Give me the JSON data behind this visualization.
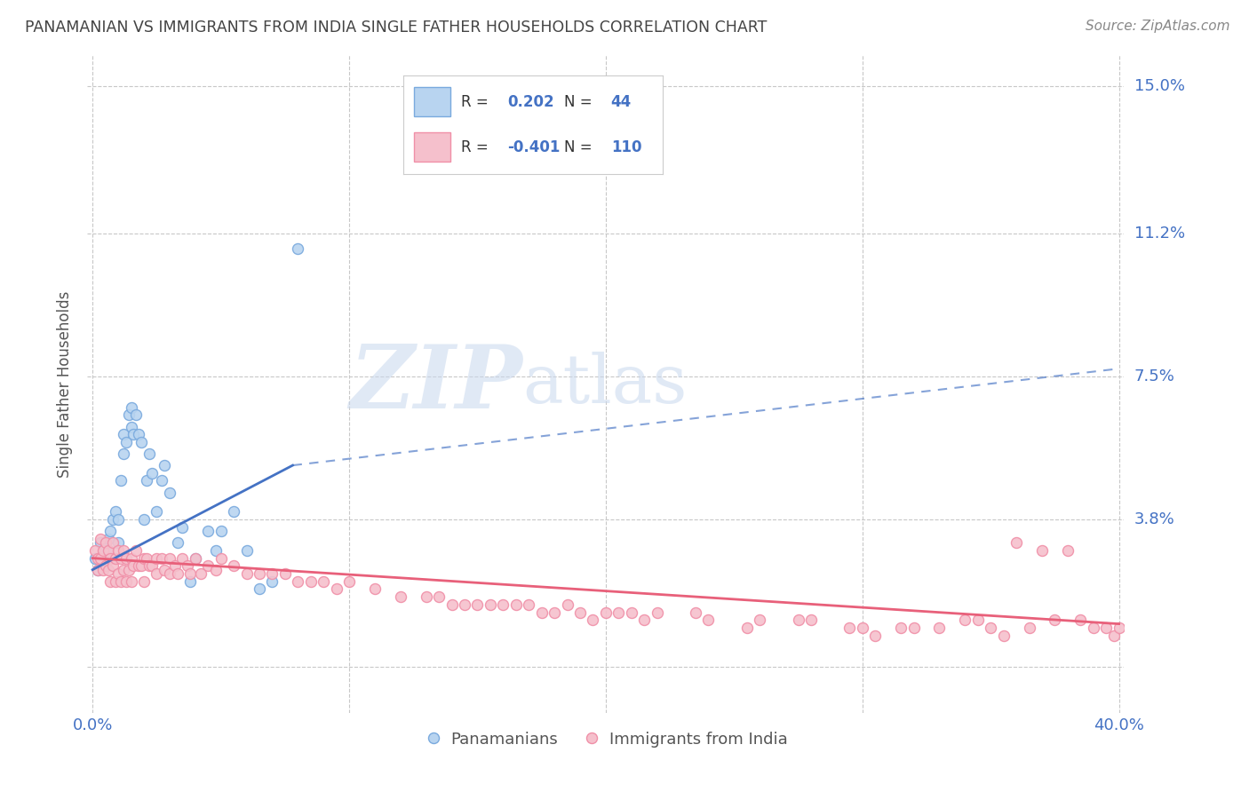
{
  "title": "PANAMANIAN VS IMMIGRANTS FROM INDIA SINGLE FATHER HOUSEHOLDS CORRELATION CHART",
  "source": "Source: ZipAtlas.com",
  "ylabel": "Single Father Households",
  "yticks": [
    0.0,
    0.038,
    0.075,
    0.112,
    0.15
  ],
  "ytick_labels": [
    "",
    "3.8%",
    "7.5%",
    "11.2%",
    "15.0%"
  ],
  "xticks": [
    0.0,
    0.1,
    0.2,
    0.3,
    0.4
  ],
  "xlim": [
    -0.002,
    0.402
  ],
  "ylim": [
    -0.012,
    0.158
  ],
  "blue_line_color": "#4472c4",
  "pink_line_color": "#e8607a",
  "blue_scatter_face": "#b8d4f0",
  "blue_scatter_edge": "#7aaade",
  "pink_scatter_face": "#f5c0cc",
  "pink_scatter_edge": "#f090a8",
  "axis_label_color": "#4472c4",
  "bg_color": "#ffffff",
  "grid_color": "#c8c8c8",
  "title_color": "#444444",
  "watermark_zip": "ZIP",
  "watermark_atlas": "atlas",
  "blue_points_x": [
    0.001,
    0.002,
    0.003,
    0.004,
    0.005,
    0.005,
    0.006,
    0.006,
    0.007,
    0.008,
    0.009,
    0.01,
    0.01,
    0.011,
    0.012,
    0.012,
    0.013,
    0.014,
    0.015,
    0.015,
    0.016,
    0.017,
    0.018,
    0.019,
    0.02,
    0.021,
    0.022,
    0.023,
    0.025,
    0.027,
    0.028,
    0.03,
    0.033,
    0.035,
    0.038,
    0.04,
    0.045,
    0.048,
    0.05,
    0.055,
    0.06,
    0.065,
    0.07,
    0.08
  ],
  "blue_points_y": [
    0.028,
    0.025,
    0.032,
    0.03,
    0.032,
    0.027,
    0.033,
    0.03,
    0.035,
    0.038,
    0.04,
    0.038,
    0.032,
    0.048,
    0.055,
    0.06,
    0.058,
    0.065,
    0.062,
    0.067,
    0.06,
    0.065,
    0.06,
    0.058,
    0.038,
    0.048,
    0.055,
    0.05,
    0.04,
    0.048,
    0.052,
    0.045,
    0.032,
    0.036,
    0.022,
    0.028,
    0.035,
    0.03,
    0.035,
    0.04,
    0.03,
    0.02,
    0.022,
    0.108
  ],
  "pink_points_x": [
    0.001,
    0.002,
    0.002,
    0.003,
    0.003,
    0.004,
    0.004,
    0.005,
    0.005,
    0.006,
    0.006,
    0.007,
    0.007,
    0.008,
    0.008,
    0.009,
    0.009,
    0.01,
    0.01,
    0.011,
    0.011,
    0.012,
    0.012,
    0.013,
    0.013,
    0.014,
    0.015,
    0.015,
    0.016,
    0.017,
    0.018,
    0.019,
    0.02,
    0.02,
    0.021,
    0.022,
    0.023,
    0.025,
    0.025,
    0.027,
    0.028,
    0.03,
    0.03,
    0.032,
    0.033,
    0.035,
    0.037,
    0.038,
    0.04,
    0.042,
    0.045,
    0.048,
    0.05,
    0.055,
    0.06,
    0.065,
    0.07,
    0.075,
    0.08,
    0.085,
    0.09,
    0.095,
    0.1,
    0.11,
    0.12,
    0.13,
    0.14,
    0.15,
    0.16,
    0.17,
    0.18,
    0.19,
    0.2,
    0.22,
    0.24,
    0.26,
    0.28,
    0.3,
    0.32,
    0.34,
    0.35,
    0.36,
    0.37,
    0.38,
    0.39,
    0.395,
    0.398,
    0.4,
    0.385,
    0.375,
    0.365,
    0.355,
    0.345,
    0.33,
    0.315,
    0.305,
    0.295,
    0.275,
    0.255,
    0.235,
    0.215,
    0.21,
    0.205,
    0.195,
    0.185,
    0.175,
    0.165,
    0.155,
    0.145,
    0.135
  ],
  "pink_points_y": [
    0.03,
    0.028,
    0.025,
    0.033,
    0.028,
    0.03,
    0.025,
    0.032,
    0.026,
    0.03,
    0.025,
    0.028,
    0.022,
    0.032,
    0.026,
    0.028,
    0.022,
    0.03,
    0.024,
    0.028,
    0.022,
    0.03,
    0.025,
    0.028,
    0.022,
    0.025,
    0.028,
    0.022,
    0.026,
    0.03,
    0.026,
    0.026,
    0.028,
    0.022,
    0.028,
    0.026,
    0.026,
    0.028,
    0.024,
    0.028,
    0.025,
    0.028,
    0.024,
    0.026,
    0.024,
    0.028,
    0.026,
    0.024,
    0.028,
    0.024,
    0.026,
    0.025,
    0.028,
    0.026,
    0.024,
    0.024,
    0.024,
    0.024,
    0.022,
    0.022,
    0.022,
    0.02,
    0.022,
    0.02,
    0.018,
    0.018,
    0.016,
    0.016,
    0.016,
    0.016,
    0.014,
    0.014,
    0.014,
    0.014,
    0.012,
    0.012,
    0.012,
    0.01,
    0.01,
    0.012,
    0.01,
    0.032,
    0.03,
    0.03,
    0.01,
    0.01,
    0.008,
    0.01,
    0.012,
    0.012,
    0.01,
    0.008,
    0.012,
    0.01,
    0.01,
    0.008,
    0.01,
    0.012,
    0.01,
    0.014,
    0.012,
    0.014,
    0.014,
    0.012,
    0.016,
    0.014,
    0.016,
    0.016,
    0.016,
    0.018
  ],
  "blue_line_x0": 0.0,
  "blue_line_x_solid_end": 0.078,
  "blue_line_x_dash_end": 0.4,
  "blue_line_y0": 0.025,
  "blue_line_y_solid_end": 0.052,
  "blue_line_y_dash_end": 0.077,
  "pink_line_x0": 0.0,
  "pink_line_x1": 0.4,
  "pink_line_y0": 0.028,
  "pink_line_y1": 0.011
}
